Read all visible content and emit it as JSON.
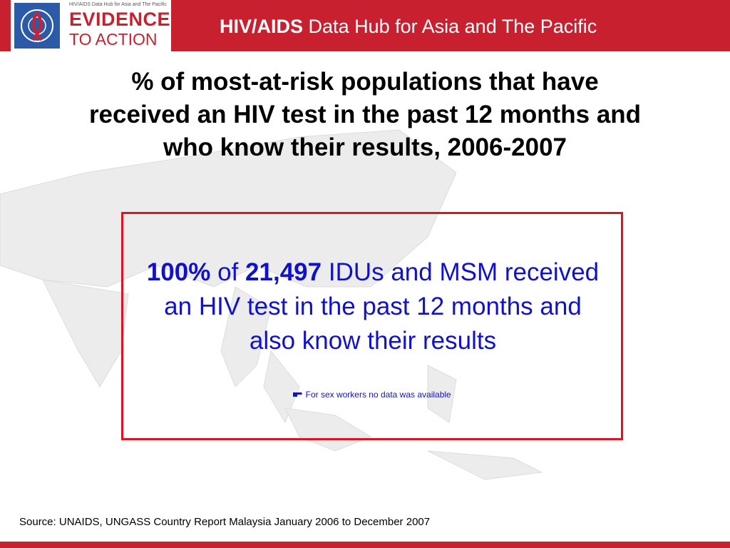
{
  "header": {
    "logo_small_text": "HIV/AIDS Data Hub for Asia and The Pacific",
    "logo_line1": "EVIDENCE",
    "logo_line2": "TO ACTION",
    "title_bold": "HIV/AIDS",
    "title_rest": "Data Hub for Asia and The Pacific"
  },
  "title_lines": [
    "% of most-at-risk populations that have",
    "received an HIV test in the past 12 months and",
    "who know their results, 2006-2007"
  ],
  "statement": {
    "percent": "100%",
    "of": "of",
    "count": "21,497",
    "text": "IDUs and MSM received an HIV test in the past 12 months and also know their results"
  },
  "note": "For sex workers no data was available",
  "source": "Source: UNAIDS, UNGASS Country Report Malaysia January 2006 to December 2007"
}
